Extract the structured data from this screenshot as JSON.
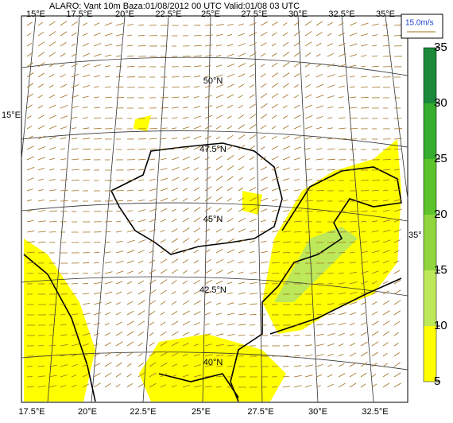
{
  "header": {
    "title": "ALARO: Vant 10m  Baza:01/08/2012 00 UTC Valid:01/08  03 UTC"
  },
  "top_lon_labels": [
    "15°E",
    "17.5°E",
    "20°E",
    "22.5°E",
    "25°E",
    "27.5°E",
    "30°E",
    "32.5°E",
    "35°E"
  ],
  "bottom_lon_labels": [
    "17.5°E",
    "20°E",
    "22.5°E",
    "25°E",
    "27.5°E",
    "30°E",
    "32.5°E"
  ],
  "lat_labels": [
    "50°N",
    "47.5°N",
    "45°N",
    "42.5°N",
    "40°N"
  ],
  "left_label": "15°E",
  "right_label": "35°",
  "wind_legend": "15.0m/s",
  "colorbar": {
    "lim": [
      5,
      35
    ],
    "ticks": [
      5,
      10,
      15,
      20,
      25,
      30,
      35
    ],
    "colors": [
      "#ffff00",
      "#bde85a",
      "#8fd63c",
      "#5cc42a",
      "#35ad2d",
      "#1a8a3a"
    ]
  }
}
